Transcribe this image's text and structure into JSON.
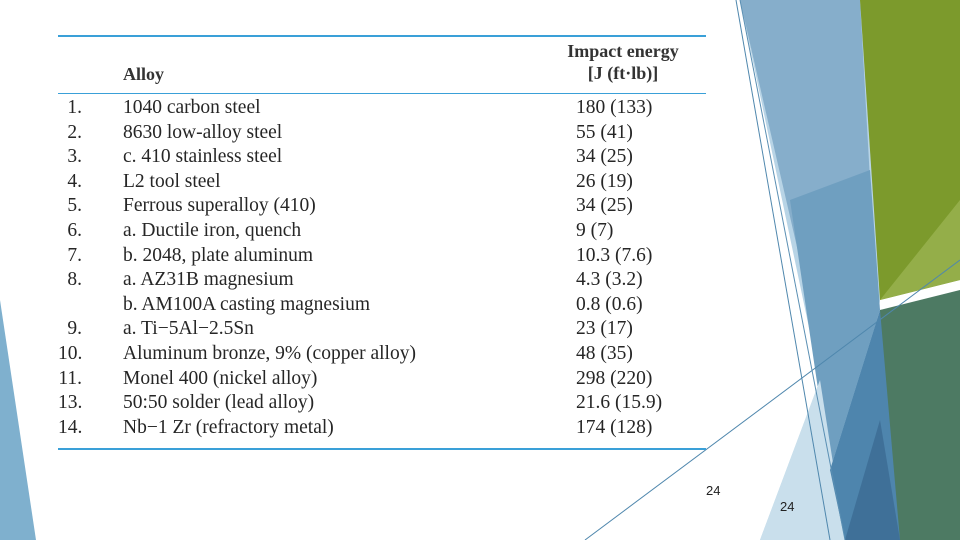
{
  "table": {
    "header": {
      "alloy": "Alloy",
      "impact_line1": "Impact energy",
      "impact_line2": "[J (ft·lb)]"
    },
    "rows": [
      {
        "num": "1.",
        "alloy": "1040 carbon steel",
        "impact": "180 (133)"
      },
      {
        "num": "2.",
        "alloy": "8630 low-alloy steel",
        "impact": "55 (41)"
      },
      {
        "num": "3.",
        "alloy": "c. 410 stainless steel",
        "impact": "34 (25)"
      },
      {
        "num": "4.",
        "alloy": "L2 tool steel",
        "impact": "26 (19)"
      },
      {
        "num": "5.",
        "alloy": "Ferrous superalloy (410)",
        "impact": "34 (25)"
      },
      {
        "num": "6.",
        "alloy": "a. Ductile iron, quench",
        "impact": "9 (7)"
      },
      {
        "num": "7.",
        "alloy": "b. 2048, plate aluminum",
        "impact": "10.3 (7.6)"
      },
      {
        "num": "8.",
        "alloy": "a. AZ31B magnesium",
        "impact": "4.3 (3.2)"
      },
      {
        "num": "",
        "alloy": "b. AM100A casting magnesium",
        "impact": "0.8 (0.6)"
      },
      {
        "num": "9.",
        "alloy": "a. Ti−5Al−2.5Sn",
        "impact": "23 (17)"
      },
      {
        "num": "10.",
        "alloy": "Aluminum bronze, 9% (copper alloy)",
        "impact": "48 (35)"
      },
      {
        "num": "11.",
        "alloy": "Monel 400 (nickel alloy)",
        "impact": "298 (220)"
      },
      {
        "num": "13.",
        "alloy": "50:50 solder (lead alloy)",
        "impact": "21.6 (15.9)"
      },
      {
        "num": "14.",
        "alloy": "Nb−1 Zr (refractory metal)",
        "impact": "174 (128)"
      }
    ]
  },
  "slide_number_1": "24",
  "slide_number_2": "24",
  "colors": {
    "rule": "#3aa0d8",
    "facet_light_blue": "#a9c9de",
    "facet_mid_blue": "#6f9fbf",
    "facet_dark_blue": "#4a7fa6",
    "facet_green": "#7f9a2e",
    "facet_dark_green": "#4f7a5a"
  }
}
